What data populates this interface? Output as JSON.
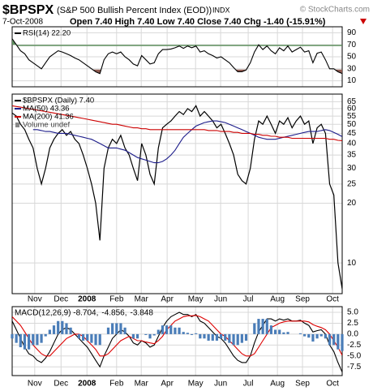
{
  "header": {
    "symbol": "$BPSPX",
    "name": "(S&P 500 Bullish Percent Index (EOD))",
    "exchange": "INDX",
    "copyright": "© StockCharts.com",
    "date": "7-Oct-2008",
    "quote": "Open 7.40  High 7.40  Low 7.40  Close 7.40  Chg -1.40 (-15.91%)"
  },
  "chart_data": [
    {
      "type": "line",
      "ylim": [
        0,
        100
      ],
      "yticks": [
        10,
        30,
        50,
        70,
        90
      ],
      "grid": true,
      "overbought": 70,
      "oversold": 30,
      "fill_high_color": "#5f8f5f",
      "fill_low_color": "#8e5a50",
      "series": [
        {
          "name": "RSI(14) 22.20",
          "color": "#000000",
          "values": [
            80,
            70,
            60,
            55,
            45,
            40,
            35,
            30,
            40,
            50,
            55,
            60,
            58,
            55,
            52,
            48,
            45,
            40,
            35,
            30,
            25,
            22,
            45,
            55,
            58,
            55,
            58,
            50,
            45,
            38,
            35,
            52,
            45,
            38,
            40,
            55,
            62,
            62,
            63,
            65,
            68,
            64,
            68,
            65,
            68,
            58,
            60,
            55,
            52,
            48,
            50,
            45,
            40,
            32,
            25,
            25,
            28,
            40,
            58,
            70,
            62,
            68,
            60,
            55,
            65,
            60,
            68,
            58,
            62,
            66,
            58,
            60,
            40,
            56,
            58,
            45,
            30,
            30,
            25,
            22.2
          ]
        }
      ]
    },
    {
      "type": "line",
      "log_scale": true,
      "ylim": [
        7,
        71
      ],
      "yticks": [
        65,
        60,
        55,
        50,
        45,
        40,
        35,
        30,
        25,
        20,
        10
      ],
      "grid": true,
      "xlim": [
        0,
        79
      ],
      "xticks": [
        {
          "value": 5.4,
          "label": "Nov"
        },
        {
          "value": 11.7,
          "label": "Dec"
        },
        {
          "value": 17.9,
          "label": "2008"
        },
        {
          "value": 25,
          "label": "Feb"
        },
        {
          "value": 30.9,
          "label": "Mar"
        },
        {
          "value": 37.1,
          "label": "Apr"
        },
        {
          "value": 43.9,
          "label": "May"
        },
        {
          "value": 49.9,
          "label": "Jun"
        },
        {
          "value": 56.5,
          "label": "Jul"
        },
        {
          "value": 63.5,
          "label": "Aug"
        },
        {
          "value": 69.5,
          "label": "Sep"
        },
        {
          "value": 76.7,
          "label": "Oct"
        }
      ],
      "annotations": [
        "Volume undef"
      ],
      "series": [
        {
          "name": "$BPSPX (Daily) 7.40",
          "color": "#000000",
          "values": [
            57,
            55,
            50,
            47,
            42,
            38,
            30,
            25,
            30,
            38,
            42,
            45,
            47,
            44,
            46,
            42,
            40,
            35,
            30,
            25,
            20,
            13,
            30,
            38,
            42,
            40,
            44,
            38,
            35,
            30,
            26,
            40,
            35,
            28,
            25,
            38,
            48,
            50,
            52,
            55,
            58,
            56,
            60,
            58,
            62,
            55,
            58,
            55,
            52,
            48,
            50,
            45,
            40,
            35,
            28,
            26,
            25,
            30,
            42,
            52,
            50,
            55,
            50,
            45,
            52,
            50,
            54,
            48,
            52,
            55,
            50,
            52,
            40,
            48,
            50,
            45,
            25,
            22,
            10,
            7.4
          ]
        },
        {
          "name": "MA(50) 43.36",
          "color": "#1c1c8a",
          "values": [
            null,
            null,
            null,
            null,
            null,
            47,
            47,
            46.5,
            46,
            46,
            45.5,
            45,
            45,
            45,
            44.5,
            44,
            43.5,
            43,
            42.5,
            42,
            41,
            40,
            39,
            38,
            38,
            38,
            37.5,
            37,
            36,
            35,
            34,
            33.5,
            33,
            32.5,
            32,
            32,
            32.5,
            33.5,
            35,
            37,
            40,
            43,
            45,
            47,
            49,
            50,
            51,
            51.5,
            52,
            52,
            51.5,
            51,
            50,
            49,
            48,
            47,
            46,
            45,
            44,
            43,
            42.5,
            42,
            42,
            42,
            42.5,
            43,
            43.5,
            44,
            44.5,
            45,
            45.5,
            46,
            46,
            46,
            46.5,
            47,
            46.5,
            45.5,
            44.5,
            43.36
          ]
        },
        {
          "name": "MA(200) 41.36",
          "color": "#cc0000",
          "values": [
            62,
            61.5,
            61,
            60.5,
            60,
            59.5,
            59,
            58.5,
            58,
            57.5,
            57,
            56.5,
            56,
            55.5,
            55,
            54.5,
            54,
            53.5,
            53,
            52.5,
            52,
            51.5,
            51,
            50.5,
            50,
            50,
            49.5,
            49,
            48.5,
            48,
            48,
            47.5,
            47.5,
            47,
            47,
            47,
            47,
            47,
            47,
            47,
            47,
            47,
            47,
            47,
            47,
            47,
            47,
            46.5,
            46.5,
            46.5,
            46,
            46,
            46,
            45.5,
            45.5,
            45,
            45,
            45,
            44.5,
            44.5,
            44,
            44,
            43.5,
            43.5,
            43,
            43,
            43,
            42.5,
            42.5,
            42.5,
            42.5,
            42.5,
            42.5,
            42.5,
            42.5,
            42.5,
            42,
            42,
            41.5,
            41.36
          ]
        }
      ]
    },
    {
      "type": "line",
      "ylim": [
        -9.5,
        6.3
      ],
      "yticks": [
        {
          "value": 5,
          "label": "5.0"
        },
        {
          "value": 2.5,
          "label": "2.5"
        },
        {
          "value": 0,
          "label": "0.0"
        },
        {
          "value": -2.5,
          "label": "-2.5"
        },
        {
          "value": -5,
          "label": "-5.0"
        },
        -7.5
      ],
      "grid": true,
      "series": [
        {
          "name": "MACD(12,26,9) -8.704,",
          "color": "#000000",
          "values": [
            3,
            1,
            -1,
            -3,
            -4.5,
            -5,
            -6,
            -6.5,
            -5.5,
            -4,
            -2,
            0,
            1,
            1.5,
            1,
            0,
            -1,
            -2,
            -3,
            -4.5,
            -6,
            -7.5,
            -5,
            -3,
            -1,
            0,
            1,
            0.5,
            -0.5,
            -2,
            -2.5,
            -1.5,
            -2,
            -3,
            -2.5,
            -0.5,
            1.5,
            3,
            4,
            4.5,
            5,
            4.5,
            4.5,
            4,
            4.5,
            3,
            2.5,
            1.5,
            0.5,
            -0.5,
            -1,
            -2,
            -3.5,
            -5,
            -6,
            -6.5,
            -6.5,
            -5,
            -2,
            0.5,
            2,
            3.5,
            3.5,
            3,
            3.5,
            3.2,
            3.5,
            3,
            3,
            3.2,
            2.5,
            2,
            0.5,
            0.8,
            1,
            0,
            -2.5,
            -4,
            -6.5,
            -8.704
          ]
        },
        {
          "name": "-4.856,",
          "color": "#dd0000",
          "values": [
            4,
            3,
            2,
            0.5,
            -1,
            -2.5,
            -3.5,
            -4.5,
            -5,
            -5,
            -4,
            -3,
            -2,
            -1,
            -0.5,
            0,
            0,
            -0.5,
            -1.5,
            -2.5,
            -3.5,
            -5,
            -5,
            -4.5,
            -3.5,
            -2.5,
            -1.5,
            -1,
            -0.5,
            -1,
            -1.5,
            -1.5,
            -1.8,
            -2,
            -2.2,
            -1.5,
            -0.5,
            1,
            2,
            3,
            3.5,
            4,
            4.2,
            4.2,
            4.3,
            4,
            3.5,
            3,
            2,
            1,
            0,
            -0.5,
            -1.5,
            -2.5,
            -3.5,
            -4.5,
            -5,
            -5,
            -4.5,
            -3,
            -1.5,
            0,
            1.5,
            2,
            2.5,
            2.8,
            3,
            3,
            3,
            3,
            3,
            2.8,
            2.2,
            1.8,
            1.5,
            1,
            0,
            -1.5,
            -3,
            -4.856
          ]
        },
        {
          "name": "-3.848",
          "color": "#4a7db8",
          "bars": true,
          "values": [
            -1,
            -2,
            -3,
            -3.5,
            -3.5,
            -2.5,
            -2.5,
            -2,
            -0.5,
            1,
            2,
            3,
            3,
            2.5,
            1.5,
            0,
            -1,
            -1.5,
            -1.5,
            -2,
            -2.5,
            -2.5,
            0,
            1.5,
            2.5,
            2.5,
            2.5,
            1.5,
            0,
            -1,
            -1,
            0,
            -0.2,
            -1,
            -0.3,
            1,
            2,
            2,
            2,
            1.5,
            1.5,
            0.5,
            0.3,
            -0.2,
            0.2,
            -1,
            -1,
            -1.5,
            -1.5,
            -1.5,
            -1,
            -1.5,
            -2,
            -2.5,
            -2.5,
            -2,
            -1.5,
            0,
            2.5,
            3.5,
            3.5,
            3.5,
            2,
            1,
            1,
            0.4,
            0.5,
            0,
            0,
            0.2,
            -0.5,
            -0.8,
            -1.7,
            -1,
            -0.5,
            -1,
            -2.5,
            -2.5,
            -3.5,
            -3.848
          ]
        }
      ]
    }
  ]
}
